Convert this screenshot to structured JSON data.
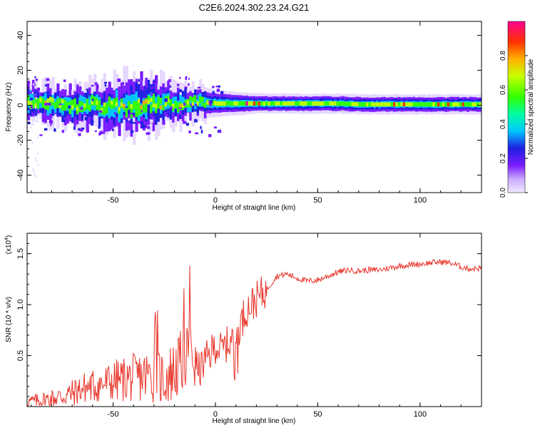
{
  "figure_title": "C2E6.2024.302.23.24.G21",
  "chart_data": [
    {
      "type": "heatmap",
      "title": "C2E6.2024.302.23.24.G21",
      "xlabel": "Height of straight line (km)",
      "ylabel": "Frequency (Hz)",
      "xlim": [
        -92,
        130
      ],
      "ylim": [
        -50,
        48
      ],
      "xticks": [
        -50,
        0,
        50,
        100
      ],
      "yticks": [
        -40,
        -20,
        0,
        20,
        40
      ],
      "grid": false,
      "colorbar": {
        "label": "Normalized spectral amplitude",
        "range": [
          0.0,
          1.0
        ],
        "ticks": [
          "0.0",
          "0.2",
          "0.4",
          "0.6",
          "0.8"
        ],
        "colormap": [
          "#e6d8ff",
          "#7a1cff",
          "#1f1fe0",
          "#00c8ff",
          "#00ffa0",
          "#33ff00",
          "#c8ff00",
          "#ffb000",
          "#ff3300",
          "#ff0090"
        ]
      },
      "band_center_hz": [
        [
          -92,
          2
        ],
        [
          -80,
          1
        ],
        [
          -70,
          -1
        ],
        [
          -60,
          0
        ],
        [
          -50,
          -1
        ],
        [
          -40,
          0
        ],
        [
          -30,
          0
        ],
        [
          -20,
          1
        ],
        [
          -10,
          2
        ],
        [
          0,
          1
        ],
        [
          10,
          1
        ],
        [
          20,
          1
        ],
        [
          30,
          1
        ],
        [
          40,
          1
        ],
        [
          50,
          1
        ],
        [
          60,
          1
        ],
        [
          70,
          0.5
        ],
        [
          80,
          0.5
        ],
        [
          90,
          0.5
        ],
        [
          100,
          0.5
        ],
        [
          110,
          0.5
        ],
        [
          120,
          0.5
        ],
        [
          130,
          0.5
        ]
      ],
      "band_halfwidth_hz": [
        [
          -92,
          6
        ],
        [
          -70,
          6
        ],
        [
          -50,
          8
        ],
        [
          -40,
          9
        ],
        [
          -30,
          8
        ],
        [
          -20,
          6
        ],
        [
          -10,
          5
        ],
        [
          0,
          4
        ],
        [
          20,
          3
        ],
        [
          50,
          3
        ],
        [
          80,
          3
        ],
        [
          130,
          3
        ]
      ]
    },
    {
      "type": "line",
      "xlabel": "Height of straight line (km)",
      "ylabel": "SNR (10 * v/v)",
      "y_multiplier_label": "(x10",
      "y_multiplier_exp": "4",
      "y_multiplier_close": ")",
      "xlim": [
        -92,
        130
      ],
      "ylim": [
        0,
        1.7
      ],
      "xticks": [
        -50,
        0,
        50,
        100
      ],
      "yticks": [
        0.5,
        1.0,
        1.5
      ],
      "ytick_labels": [
        "0.5",
        "1.0",
        "1.5"
      ],
      "grid": false,
      "line_color": "#e8352a",
      "series": [
        {
          "x": [
            -92,
            -85,
            -80,
            -75,
            -70,
            -65,
            -60,
            -55,
            -50,
            -45,
            -40,
            -35,
            -30,
            -25,
            -20,
            -18,
            -16,
            -14,
            -13,
            -12,
            -10,
            -8,
            -5,
            -3,
            0,
            3,
            5,
            8,
            10,
            12,
            15,
            20,
            25,
            30,
            35,
            40,
            45,
            50,
            55,
            60,
            65,
            70,
            75,
            80,
            85,
            90,
            95,
            100,
            105,
            110,
            115,
            120,
            125,
            130
          ],
          "y": [
            0.05,
            0.06,
            0.08,
            0.1,
            0.13,
            0.18,
            0.2,
            0.22,
            0.25,
            0.27,
            0.28,
            0.3,
            0.3,
            0.28,
            0.35,
            0.4,
            0.45,
            0.55,
            0.65,
            0.6,
            0.45,
            0.35,
            0.45,
            0.5,
            0.6,
            0.55,
            0.6,
            0.65,
            0.7,
            0.8,
            0.95,
            1.05,
            1.15,
            1.28,
            1.3,
            1.26,
            1.23,
            1.24,
            1.28,
            1.32,
            1.34,
            1.33,
            1.34,
            1.34,
            1.36,
            1.38,
            1.39,
            1.4,
            1.41,
            1.42,
            1.41,
            1.37,
            1.35,
            1.36
          ]
        }
      ]
    }
  ]
}
